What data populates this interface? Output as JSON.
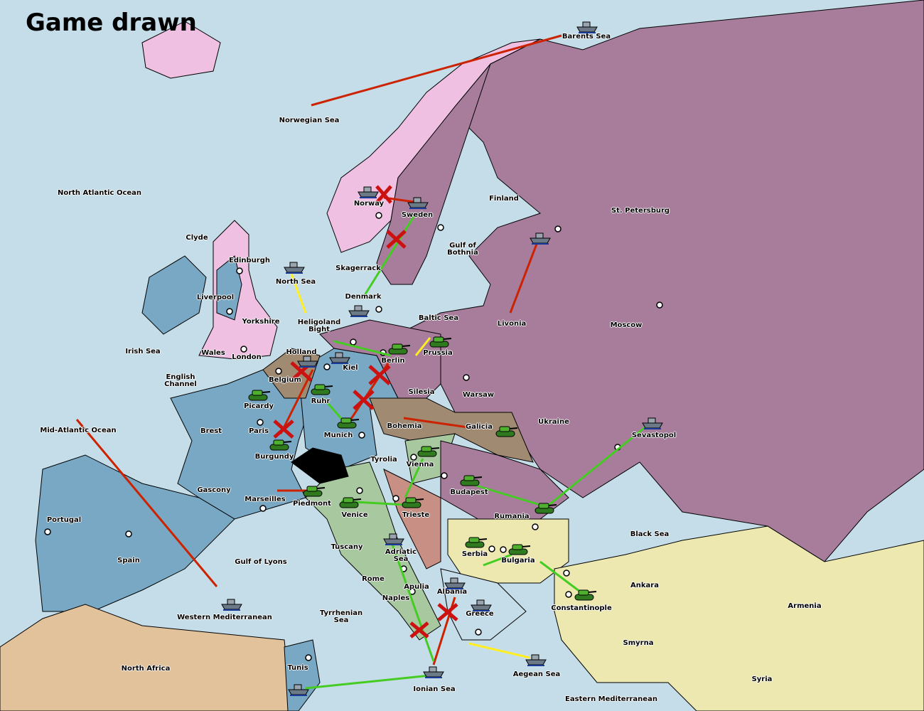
{
  "title": "Game drawn",
  "colors": {
    "sea": "#c5dde8",
    "england": "#f0c0e2",
    "france": "#78a8c4",
    "germany": "#a08a72",
    "russia": "#a87d9c",
    "italy": "#a8c8a0",
    "austria": "#c89084",
    "turkey": "#ece8b0",
    "neutral_africa": "#e2c29a",
    "support_order": "#44cc22",
    "move_order": "#cc2200",
    "convoy_order": "#ffee22"
  },
  "regions": {
    "barents_sea": "Barents Sea",
    "norwegian_sea": "Norwegian Sea",
    "north_atlantic": "North Atlantic Ocean",
    "norway": "Norway",
    "sweden": "Sweden",
    "finland": "Finland",
    "st_petersburg": "St. Petersburg",
    "clyde": "Clyde",
    "edinburgh": "Edinburgh",
    "gulf_of_bothnia": "Gulf of\nBothnia",
    "skagerrack": "Skagerrack",
    "north_sea": "North Sea",
    "liverpool": "Liverpool",
    "denmark": "Denmark",
    "yorkshire": "Yorkshire",
    "baltic_sea": "Baltic Sea",
    "livonia": "Livonia",
    "moscow": "Moscow",
    "heligoland": "Heligoland\nBight",
    "irish_sea": "Irish Sea",
    "wales": "Wales",
    "london": "London",
    "holland": "Holland",
    "prussia": "Prussia",
    "kiel": "Kiel",
    "berlin": "Berlin",
    "english_channel": "English\nChannel",
    "belgium": "Belgium",
    "silesia": "Silesia",
    "warsaw": "Warsaw",
    "ruhr": "Ruhr",
    "picardy": "Picardy",
    "ukraine": "Ukraine",
    "brest": "Brest",
    "paris": "Paris",
    "mid_atlantic": "Mid-Atlantic Ocean",
    "bohemia": "Bohemia",
    "galicia": "Galicia",
    "munich": "Munich",
    "sevastopol": "Sevastopol",
    "burgundy": "Burgundy",
    "tyrolia": "Tyrolia",
    "vienna": "Vienna",
    "gascony": "Gascony",
    "budapest": "Budapest",
    "marseilles": "Marseilles",
    "piedmont": "Piedmont",
    "venice": "Venice",
    "trieste": "Trieste",
    "rumania": "Rumania",
    "portugal": "Portugal",
    "black_sea": "Black Sea",
    "tuscany": "Tuscany",
    "adriatic": "Adriatic\nSea",
    "serbia": "Serbia",
    "spain": "Spain",
    "bulgaria": "Bulgaria",
    "gulf_of_lyons": "Gulf of Lyons",
    "rome": "Rome",
    "apulia": "Apulia",
    "ankara": "Ankara",
    "albania": "Albania",
    "armenia": "Armenia",
    "naples": "Naples",
    "constantinople": "Constantinople",
    "greece": "Greece",
    "western_med": "Western Mediterranean",
    "tyrrhenian": "Tyrrhenian\nSea",
    "smyrna": "Smyrna",
    "north_africa": "North Africa",
    "tunis": "Tunis",
    "aegean": "Aegean Sea",
    "syria": "Syria",
    "ionian": "Ionian Sea",
    "eastern_med": "Eastern Mediterranean"
  },
  "units": [
    {
      "type": "fleet",
      "location": "Barents Sea",
      "icon": "ship-icon"
    },
    {
      "type": "fleet",
      "location": "Norway",
      "icon": "ship-icon"
    },
    {
      "type": "fleet",
      "location": "Sweden",
      "icon": "ship-icon"
    },
    {
      "type": "fleet",
      "location": "Gulf of Bothnia",
      "icon": "ship-icon"
    },
    {
      "type": "fleet",
      "location": "North Sea",
      "icon": "ship-icon"
    },
    {
      "type": "fleet",
      "location": "Denmark",
      "icon": "ship-icon"
    },
    {
      "type": "fleet",
      "location": "Kiel",
      "icon": "ship-icon"
    },
    {
      "type": "fleet",
      "location": "Holland",
      "icon": "ship-icon"
    },
    {
      "type": "army",
      "location": "Berlin",
      "icon": "tank-icon"
    },
    {
      "type": "army",
      "location": "Prussia",
      "icon": "tank-icon"
    },
    {
      "type": "army",
      "location": "Ruhr",
      "icon": "tank-icon"
    },
    {
      "type": "army",
      "location": "Picardy",
      "icon": "tank-icon"
    },
    {
      "type": "army",
      "location": "Munich",
      "icon": "tank-icon"
    },
    {
      "type": "army",
      "location": "Burgundy",
      "icon": "tank-icon"
    },
    {
      "type": "army",
      "location": "Galicia",
      "icon": "tank-icon"
    },
    {
      "type": "fleet",
      "location": "Sevastopol",
      "icon": "ship-icon"
    },
    {
      "type": "army",
      "location": "Vienna",
      "icon": "tank-icon"
    },
    {
      "type": "army",
      "location": "Budapest",
      "icon": "tank-icon"
    },
    {
      "type": "army",
      "location": "Piedmont",
      "icon": "tank-icon"
    },
    {
      "type": "army",
      "location": "Venice",
      "icon": "tank-icon"
    },
    {
      "type": "army",
      "location": "Trieste",
      "icon": "tank-icon"
    },
    {
      "type": "army",
      "location": "Rumania",
      "icon": "tank-icon"
    },
    {
      "type": "fleet",
      "location": "Adriatic Sea",
      "icon": "ship-icon"
    },
    {
      "type": "army",
      "location": "Serbia",
      "icon": "tank-icon"
    },
    {
      "type": "army",
      "location": "Bulgaria",
      "icon": "tank-icon"
    },
    {
      "type": "fleet",
      "location": "Albania",
      "icon": "ship-icon"
    },
    {
      "type": "fleet",
      "location": "Greece",
      "icon": "ship-icon"
    },
    {
      "type": "army",
      "location": "Constantinople",
      "icon": "tank-icon"
    },
    {
      "type": "fleet",
      "location": "Aegean Sea",
      "icon": "ship-icon"
    },
    {
      "type": "fleet",
      "location": "Ionian Sea",
      "icon": "ship-icon"
    },
    {
      "type": "fleet",
      "location": "Western Mediterranean",
      "icon": "ship-icon"
    },
    {
      "type": "fleet",
      "location": "Tunis",
      "icon": "ship-icon"
    }
  ]
}
